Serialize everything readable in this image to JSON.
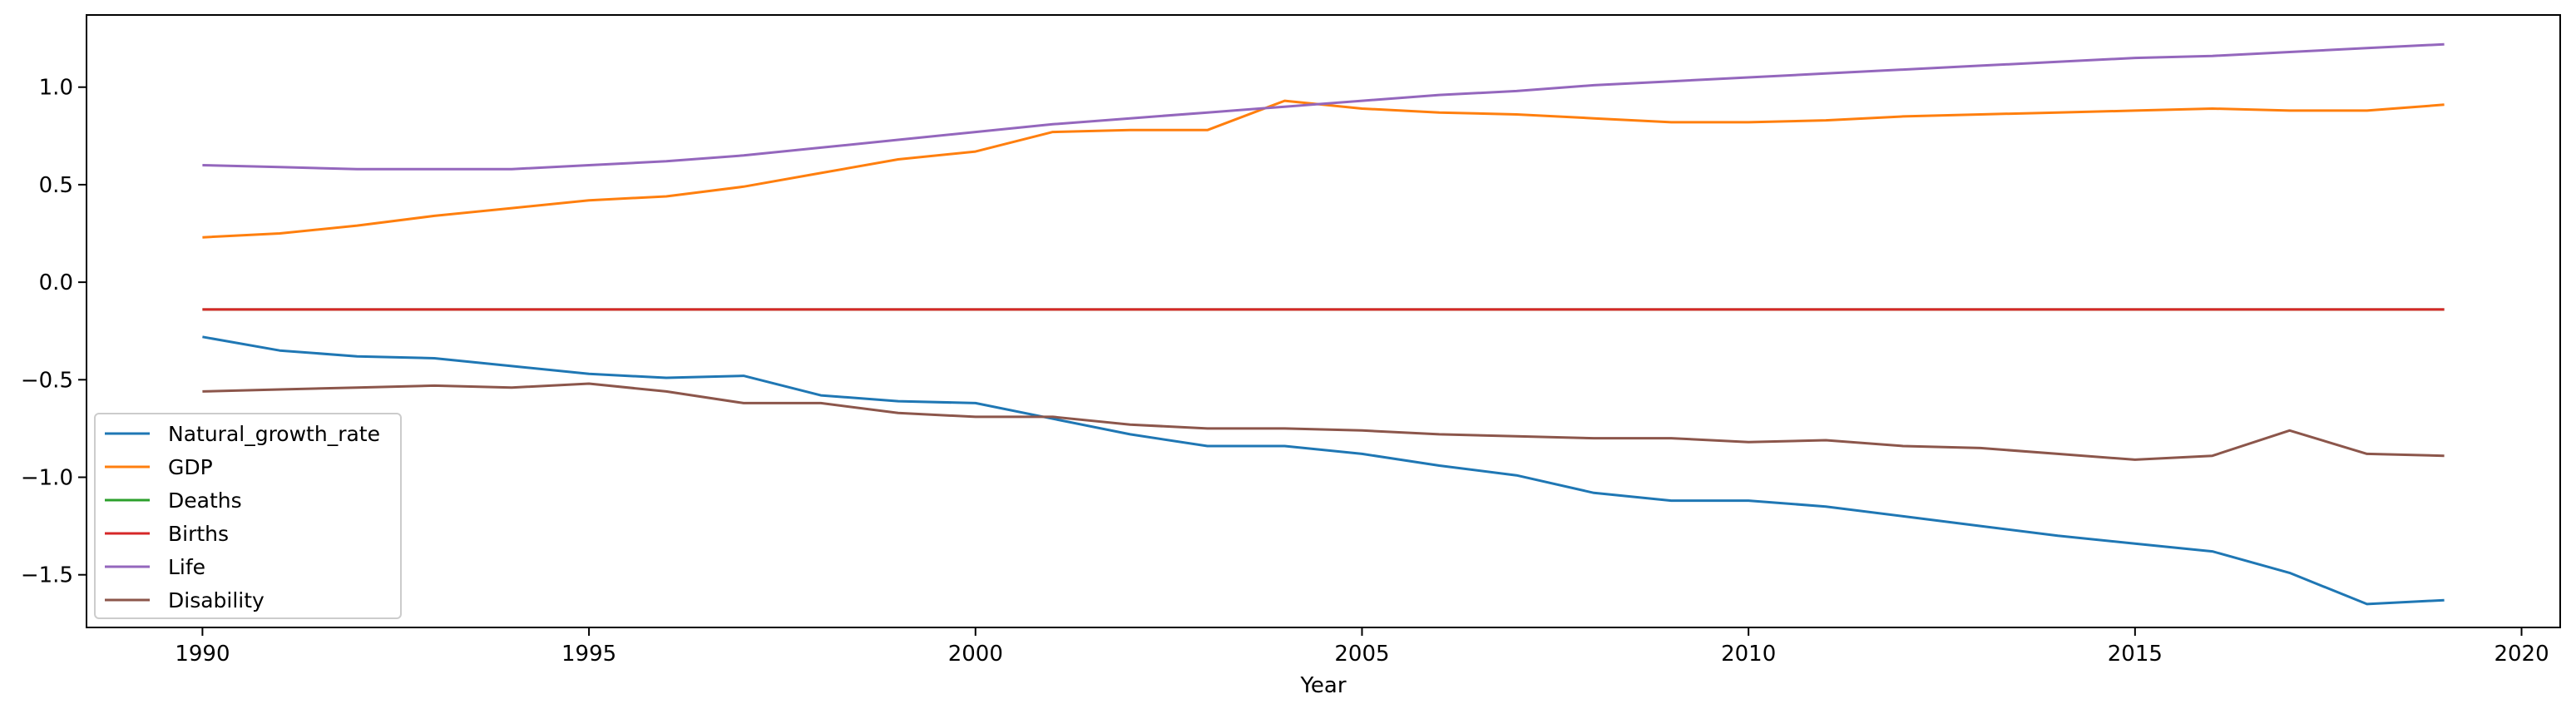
{
  "chart_data": {
    "type": "line",
    "title": "",
    "xlabel": "Year",
    "ylabel": "",
    "xlim": [
      1988.5,
      2020.5
    ],
    "ylim": [
      -1.77,
      1.37
    ],
    "xticks": [
      1990,
      1995,
      2000,
      2005,
      2010,
      2015,
      2020
    ],
    "xtick_labels": [
      "1990",
      "1995",
      "2000",
      "2005",
      "2010",
      "2015",
      "2020"
    ],
    "yticks": [
      1.0,
      0.5,
      0.0,
      -0.5,
      -1.0,
      -1.5
    ],
    "ytick_labels": [
      "1.0",
      "0.5",
      "0.0",
      "−0.5",
      "−1.0",
      "−1.5"
    ],
    "grid": false,
    "legend_position": "lower-left",
    "x": [
      1990,
      1991,
      1992,
      1993,
      1994,
      1995,
      1996,
      1997,
      1998,
      1999,
      2000,
      2001,
      2002,
      2003,
      2004,
      2005,
      2006,
      2007,
      2008,
      2009,
      2010,
      2011,
      2012,
      2013,
      2014,
      2015,
      2016,
      2017,
      2018,
      2019
    ],
    "series": [
      {
        "name": "Natural_growth_rate",
        "color": "#1f77b4",
        "values": [
          -0.28,
          -0.35,
          -0.38,
          -0.39,
          -0.43,
          -0.47,
          -0.49,
          -0.48,
          -0.58,
          -0.61,
          -0.62,
          -0.7,
          -0.78,
          -0.84,
          -0.84,
          -0.88,
          -0.94,
          -0.99,
          -1.08,
          -1.12,
          -1.12,
          -1.15,
          -1.2,
          -1.25,
          -1.3,
          -1.34,
          -1.38,
          -1.49,
          -1.65,
          -1.63
        ]
      },
      {
        "name": "GDP",
        "color": "#ff7f0e",
        "values": [
          0.23,
          0.25,
          0.29,
          0.34,
          0.38,
          0.42,
          0.44,
          0.49,
          0.56,
          0.63,
          0.67,
          0.77,
          0.78,
          0.78,
          0.93,
          0.89,
          0.87,
          0.86,
          0.84,
          0.82,
          0.82,
          0.83,
          0.85,
          0.86,
          0.87,
          0.88,
          0.89,
          0.88,
          0.88,
          0.91
        ]
      },
      {
        "name": "Deaths",
        "color": "#2ca02c",
        "values": [
          -0.14,
          -0.14,
          -0.14,
          -0.14,
          -0.14,
          -0.14,
          -0.14,
          -0.14,
          -0.14,
          -0.14,
          -0.14,
          -0.14,
          -0.14,
          -0.14,
          -0.14,
          -0.14,
          -0.14,
          -0.14,
          -0.14,
          -0.14,
          -0.14,
          -0.14,
          -0.14,
          -0.14,
          -0.14,
          -0.14,
          -0.14,
          -0.14,
          -0.14,
          -0.14
        ]
      },
      {
        "name": "Births",
        "color": "#d62728",
        "values": [
          -0.14,
          -0.14,
          -0.14,
          -0.14,
          -0.14,
          -0.14,
          -0.14,
          -0.14,
          -0.14,
          -0.14,
          -0.14,
          -0.14,
          -0.14,
          -0.14,
          -0.14,
          -0.14,
          -0.14,
          -0.14,
          -0.14,
          -0.14,
          -0.14,
          -0.14,
          -0.14,
          -0.14,
          -0.14,
          -0.14,
          -0.14,
          -0.14,
          -0.14,
          -0.14
        ]
      },
      {
        "name": "Life",
        "color": "#9467bd",
        "values": [
          0.6,
          0.59,
          0.58,
          0.58,
          0.58,
          0.6,
          0.62,
          0.65,
          0.69,
          0.73,
          0.77,
          0.81,
          0.84,
          0.87,
          0.9,
          0.93,
          0.96,
          0.98,
          1.01,
          1.03,
          1.05,
          1.07,
          1.09,
          1.11,
          1.13,
          1.15,
          1.16,
          1.18,
          1.2,
          1.22
        ]
      },
      {
        "name": "Disability",
        "color": "#8c564b",
        "values": [
          -0.56,
          -0.55,
          -0.54,
          -0.53,
          -0.54,
          -0.52,
          -0.56,
          -0.62,
          -0.62,
          -0.67,
          -0.69,
          -0.69,
          -0.73,
          -0.75,
          -0.75,
          -0.76,
          -0.78,
          -0.79,
          -0.8,
          -0.8,
          -0.82,
          -0.81,
          -0.84,
          -0.85,
          -0.88,
          -0.91,
          -0.89,
          -0.76,
          -0.88,
          -0.89
        ]
      }
    ]
  }
}
